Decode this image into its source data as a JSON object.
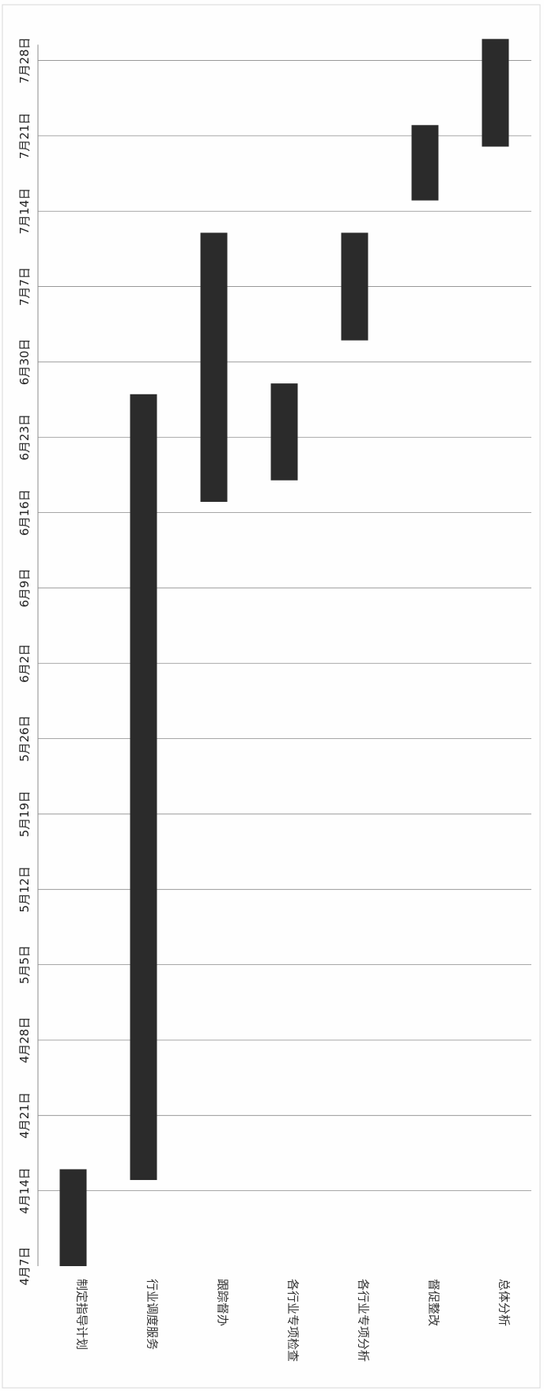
{
  "chart_data": {
    "type": "bar",
    "orientation": "gantt",
    "rotation": "90deg clockwise (page rotated)",
    "title": "",
    "xlabel": "",
    "ylabel": "",
    "categories": [
      "制定指导计划",
      "行业调度服务",
      "跟踪督办",
      "各行业专项检查",
      "各行业专项分析",
      "督促整改",
      "总体分析"
    ],
    "tasks": [
      {
        "name": "制定指导计划",
        "start": "4月7日",
        "end": "4月16日"
      },
      {
        "name": "行业调度服务",
        "start": "4月15日",
        "end": "6月27日"
      },
      {
        "name": "跟踪督办",
        "start": "6月17日",
        "end": "7月12日"
      },
      {
        "name": "各行业专项检查",
        "start": "6月19日",
        "end": "6月28日"
      },
      {
        "name": "各行业专项分析",
        "start": "7月2日",
        "end": "7月12日"
      },
      {
        "name": "督促整改",
        "start": "7月15日",
        "end": "7月22日"
      },
      {
        "name": "总体分析",
        "start": "7月20日",
        "end": "7月30日"
      }
    ],
    "date_ticks": [
      "4月7日",
      "4月14日",
      "4月21日",
      "4月28日",
      "5月5日",
      "5月12日",
      "5月19日",
      "5月26日",
      "6月2日",
      "6月9日",
      "6月16日",
      "6月23日",
      "6月30日",
      "7月7日",
      "7月14日",
      "7月21日",
      "7月28日"
    ],
    "xlim": [
      "4月7日",
      "7月28日"
    ],
    "grid": true,
    "legend": "none",
    "bar_color": "#2b2b2b"
  }
}
